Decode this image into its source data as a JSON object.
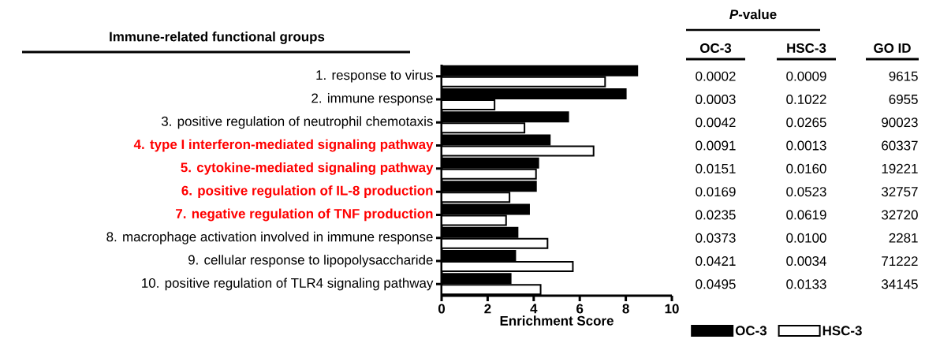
{
  "chart_data": {
    "type": "bar",
    "orientation": "horizontal",
    "title": "Immune-related  functional groups",
    "xlabel": "Enrichment Score",
    "categories": [
      "1. response to virus",
      "2. immune response",
      "3. positive regulation of neutrophil chemotaxis",
      "4. type I interferon-mediated signaling pathway",
      "5. cytokine-mediated signaling pathway",
      "6. positive regulation of IL-8 production",
      "7. negative regulation of TNF production",
      "8. macrophage activation involved in immune response",
      "9. cellular response to lipopolysaccharide",
      "10. positive regulation of TLR4 signaling pathway"
    ],
    "series": [
      {
        "name": "OC-3",
        "color": "#000000",
        "values": [
          8.5,
          8.0,
          5.5,
          4.7,
          4.2,
          4.1,
          3.8,
          3.3,
          3.2,
          3.0
        ]
      },
      {
        "name": "HSC-3",
        "color": "#ffffff",
        "values": [
          7.1,
          2.3,
          3.6,
          6.6,
          4.1,
          2.95,
          2.8,
          4.6,
          5.7,
          4.3
        ]
      }
    ],
    "xlim": [
      0,
      10
    ],
    "xticks": [
      0,
      2,
      4,
      6,
      8,
      10
    ],
    "legend": "bottom",
    "grid": false,
    "annotations": [
      "*P*-value",
      "OC-3",
      "HSC-3",
      "GO ID",
      "0.0002",
      "0.0009",
      "9615",
      "0.0003",
      "0.1022",
      "6955",
      "0.0042",
      "0.0265",
      "90023",
      "0.0091",
      "0.0013",
      "60337",
      "0.0151",
      "0.0160",
      "19221",
      "0.0169",
      "0.0523",
      "32757",
      "0.0235",
      "0.0619",
      "32720",
      "0.0373",
      "0.0100",
      "2281",
      "0.0421",
      "0.0034",
      "71222",
      "0.0495",
      "0.0133",
      "34145"
    ]
  }
}
